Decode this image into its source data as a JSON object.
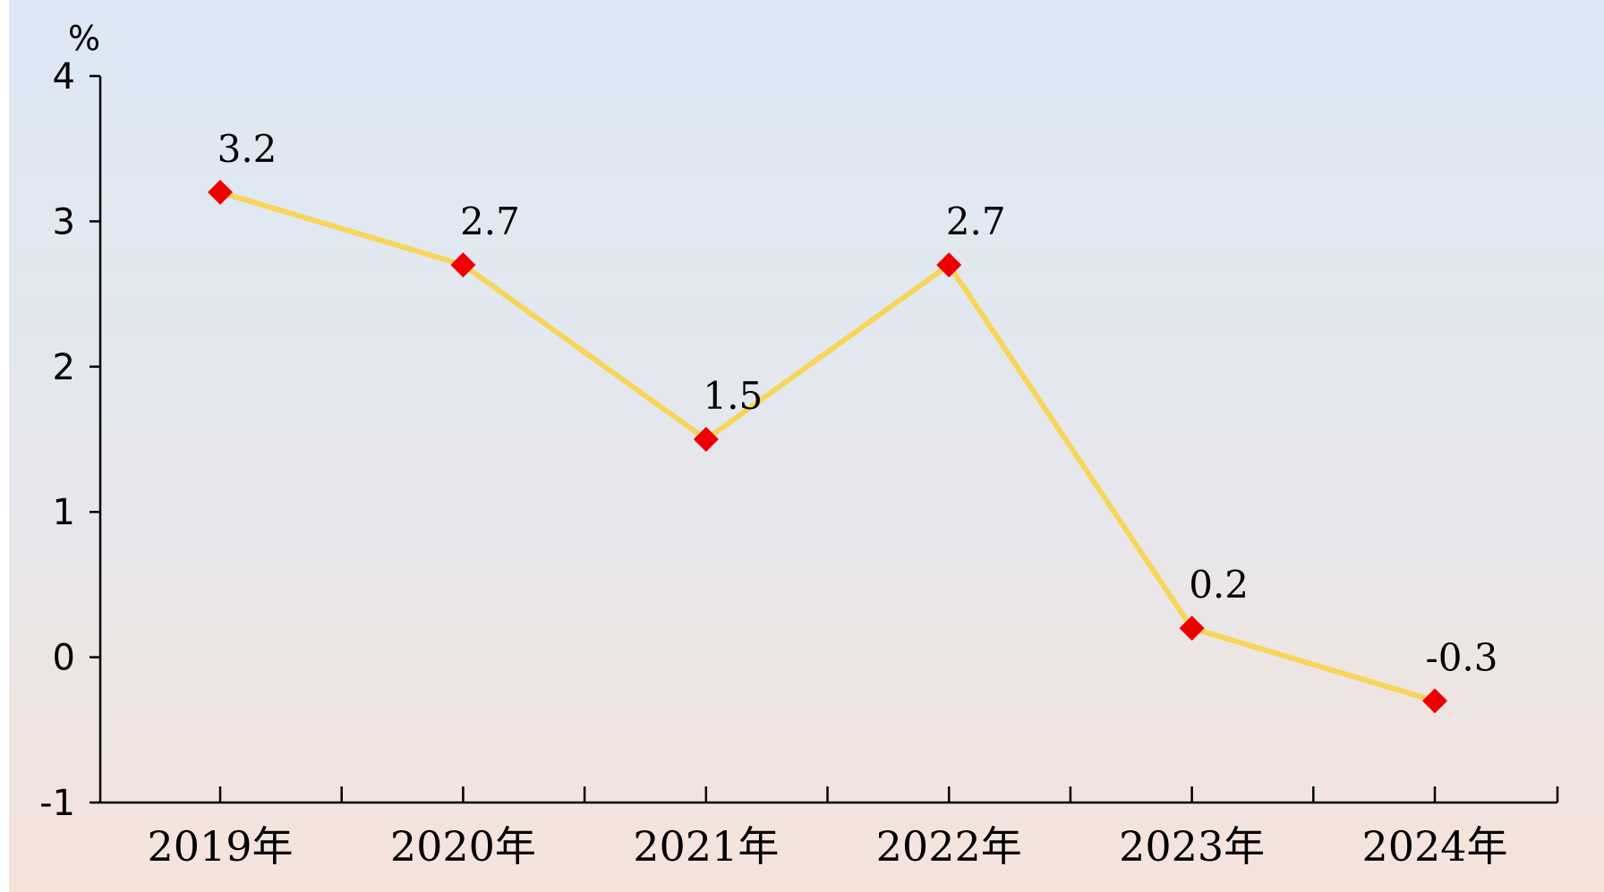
{
  "chart_data": {
    "type": "line",
    "title": "",
    "ylabel": "%",
    "xlabel": "",
    "categories": [
      "2019年",
      "2020年",
      "2021年",
      "2022年",
      "2023年",
      "2024年"
    ],
    "values": [
      3.2,
      2.7,
      1.5,
      2.7,
      0.2,
      -0.3
    ],
    "data_labels": [
      "3.2",
      "2.7",
      "1.5",
      "2.7",
      "0.2",
      "-0.3"
    ],
    "ylim": [
      -1,
      4
    ],
    "yticks": [
      -1,
      0,
      1,
      2,
      3,
      4
    ],
    "ytick_labels": [
      "-1",
      "0",
      "1",
      "2",
      "3",
      "4"
    ],
    "grid": false,
    "legend": "none",
    "colors": {
      "line": "#f7d55a",
      "marker": "#ee0000",
      "background_top": "#dce8f5",
      "background_bottom": "#f5e3da",
      "axis": "#000000"
    }
  }
}
